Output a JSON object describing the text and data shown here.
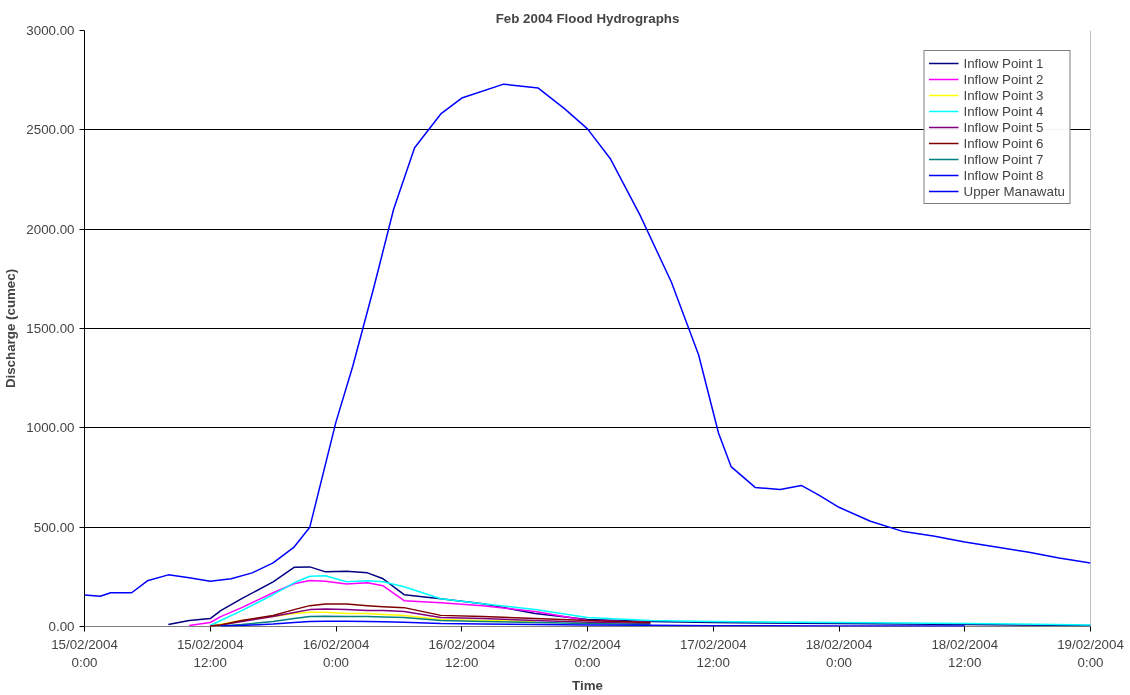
{
  "chart_data": {
    "type": "line",
    "title": "Feb 2004 Flood Hydrographs",
    "xlabel": "Time",
    "ylabel": "Discharge (cumec)",
    "xlim": [
      "2004-02-15T00:00",
      "2004-02-19T00:00"
    ],
    "xticks": [
      {
        "value": "2004-02-15T00:00",
        "label": "15/02/2004\n0:00"
      },
      {
        "value": "2004-02-15T12:00",
        "label": "15/02/2004\n12:00"
      },
      {
        "value": "2004-02-16T00:00",
        "label": "16/02/2004\n0:00"
      },
      {
        "value": "2004-02-16T12:00",
        "label": "16/02/2004\n12:00"
      },
      {
        "value": "2004-02-17T00:00",
        "label": "17/02/2004\n0:00"
      },
      {
        "value": "2004-02-17T12:00",
        "label": "17/02/2004\n12:00"
      },
      {
        "value": "2004-02-18T00:00",
        "label": "18/02/2004\n0:00"
      },
      {
        "value": "2004-02-18T12:00",
        "label": "18/02/2004\n12:00"
      },
      {
        "value": "2004-02-19T00:00",
        "label": "19/02/2004\n0:00"
      }
    ],
    "ylim": [
      0,
      3000
    ],
    "yticks": [
      {
        "value": 0,
        "label": "0.00"
      },
      {
        "value": 500,
        "label": "500.00"
      },
      {
        "value": 1000,
        "label": "1000.00"
      },
      {
        "value": 1500,
        "label": "1500.00"
      },
      {
        "value": 2000,
        "label": "2000.00"
      },
      {
        "value": 2500,
        "label": "2500.00"
      },
      {
        "value": 3000,
        "label": "3000.00"
      }
    ],
    "x": [
      "2004-02-15T08:00",
      "2004-02-15T10:00",
      "2004-02-15T12:00",
      "2004-02-15T13:00",
      "2004-02-15T15:00",
      "2004-02-15T18:00",
      "2004-02-15T20:00",
      "2004-02-15T21:30",
      "2004-02-15T23:00",
      "2004-02-16T01:00",
      "2004-02-16T03:00",
      "2004-02-16T04:30",
      "2004-02-16T06:30",
      "2004-02-16T10:00",
      "2004-02-16T14:00",
      "2004-02-16T19:00",
      "2004-02-17T00:00",
      "2004-02-17T06:00",
      "2004-02-17T12:00",
      "2004-02-18T00:00",
      "2004-02-18T12:00",
      "2004-02-19T00:00"
    ],
    "series": [
      {
        "name": "Inflow Point 1",
        "color": "#000080",
        "values": [
          10,
          30,
          40,
          80,
          140,
          225,
          298,
          300,
          275,
          278,
          270,
          240,
          160,
          140,
          115,
          65,
          35,
          25,
          20,
          15,
          10,
          5
        ]
      },
      {
        "name": "Inflow Point 2",
        "color": "#ff00ff",
        "values": [
          null,
          5,
          20,
          50,
          95,
          170,
          215,
          232,
          228,
          214,
          220,
          205,
          130,
          120,
          105,
          75,
          30,
          20,
          null,
          null,
          null,
          null
        ]
      },
      {
        "name": "Inflow Point 3",
        "color": "#ffff00",
        "values": [
          null,
          null,
          3,
          12,
          30,
          50,
          65,
          72,
          72,
          65,
          65,
          60,
          55,
          35,
          30,
          25,
          null,
          null,
          null,
          null,
          null,
          null
        ]
      },
      {
        "name": "Inflow Point 4",
        "color": "#00ffff",
        "values": [
          null,
          null,
          5,
          30,
          80,
          160,
          220,
          253,
          255,
          225,
          230,
          225,
          200,
          140,
          115,
          85,
          45,
          30,
          25,
          20,
          15,
          8
        ]
      },
      {
        "name": "Inflow Point 5",
        "color": "#800080",
        "values": [
          null,
          null,
          2,
          8,
          25,
          50,
          70,
          85,
          88,
          85,
          80,
          80,
          75,
          45,
          40,
          30,
          22,
          15,
          null,
          null,
          null,
          null
        ]
      },
      {
        "name": "Inflow Point 6",
        "color": "#800000",
        "values": [
          null,
          null,
          2,
          8,
          30,
          55,
          85,
          105,
          113,
          113,
          105,
          100,
          95,
          56,
          50,
          40,
          30,
          20,
          null,
          null,
          null,
          null
        ]
      },
      {
        "name": "Inflow Point 7",
        "color": "#008080",
        "values": [
          null,
          null,
          null,
          3,
          10,
          25,
          40,
          50,
          52,
          50,
          50,
          48,
          45,
          30,
          25,
          20,
          15,
          10,
          null,
          null,
          null,
          null
        ]
      },
      {
        "name": "Inflow Point 8",
        "color": "#0000ff",
        "values": [
          null,
          null,
          null,
          2,
          5,
          12,
          20,
          25,
          27,
          26,
          25,
          24,
          22,
          15,
          12,
          10,
          8,
          6,
          4,
          3,
          2,
          null
        ]
      },
      {
        "name": "Upper Manawatu",
        "color": "#0000ff",
        "x": [
          "2004-02-15T00:00",
          "2004-02-15T01:30",
          "2004-02-15T02:30",
          "2004-02-15T04:30",
          "2004-02-15T06:00",
          "2004-02-15T08:00",
          "2004-02-15T10:00",
          "2004-02-15T12:00",
          "2004-02-15T14:00",
          "2004-02-15T16:00",
          "2004-02-15T18:00",
          "2004-02-15T20:00",
          "2004-02-15T21:30",
          "2004-02-16T00:00",
          "2004-02-16T01:36",
          "2004-02-16T03:36",
          "2004-02-16T05:30",
          "2004-02-16T07:30",
          "2004-02-16T10:00",
          "2004-02-16T12:00",
          "2004-02-16T16:00",
          "2004-02-16T19:18",
          "2004-02-16T21:48",
          "2004-02-17T00:00",
          "2004-02-17T02:12",
          "2004-02-17T05:00",
          "2004-02-17T08:00",
          "2004-02-17T10:36",
          "2004-02-17T12:30",
          "2004-02-17T13:42",
          "2004-02-17T16:00",
          "2004-02-17T18:24",
          "2004-02-17T20:24",
          "2004-02-17T22:00",
          "2004-02-18T00:00",
          "2004-02-18T03:00",
          "2004-02-18T06:00",
          "2004-02-18T09:00",
          "2004-02-18T12:00",
          "2004-02-18T15:00",
          "2004-02-18T18:00",
          "2004-02-18T21:00",
          "2004-02-19T00:00"
        ],
        "values": [
          158,
          152,
          170,
          170,
          230,
          260,
          245,
          228,
          240,
          270,
          320,
          400,
          500,
          1030,
          1310,
          1705,
          2100,
          2410,
          2580,
          2660,
          2730,
          2710,
          2607,
          2505,
          2353,
          2072,
          1734,
          1368,
          974,
          805,
          700,
          690,
          710,
          664,
          600,
          530,
          480,
          455,
          425,
          400,
          375,
          345,
          320
        ]
      }
    ],
    "grid": "y",
    "legend": "top right",
    "marker": "none",
    "line_style": "solid"
  }
}
